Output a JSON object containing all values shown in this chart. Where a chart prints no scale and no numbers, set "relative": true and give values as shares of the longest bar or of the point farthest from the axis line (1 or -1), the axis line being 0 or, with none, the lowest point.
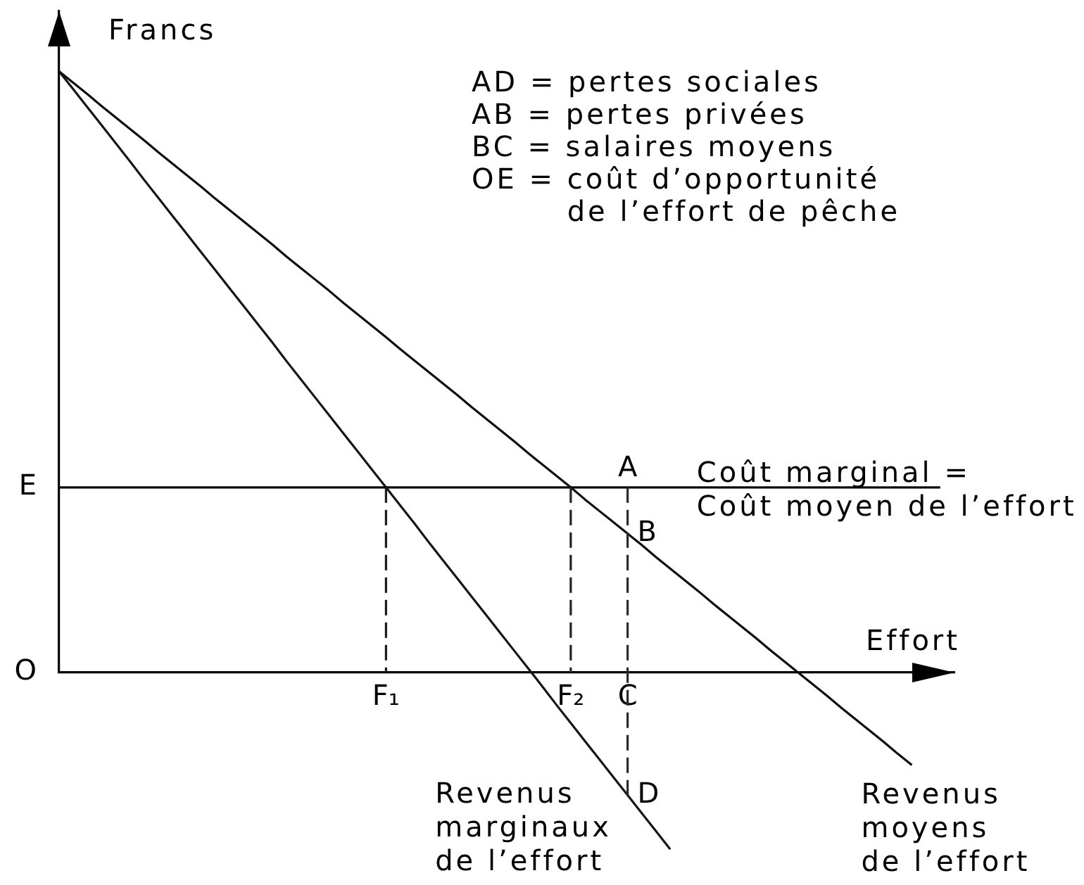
{
  "chart_data": {
    "type": "line",
    "relative": true,
    "xlabel": "Effort",
    "ylabel": "Francs",
    "categories": [
      null,
      null,
      null,
      null,
      null,
      null,
      null,
      null,
      null,
      null,
      null,
      null,
      null,
      null,
      null,
      null,
      null,
      null,
      null,
      null,
      null,
      null,
      null,
      "F₁",
      null,
      null,
      null,
      null,
      null,
      null,
      null,
      null,
      null,
      null,
      null,
      null,
      "F₂",
      null,
      null,
      null,
      "C",
      null,
      null,
      null,
      null,
      null,
      null,
      null,
      null,
      null,
      null,
      null,
      null,
      null,
      null,
      null,
      null,
      null,
      null,
      null,
      null,
      null,
      null,
      null
    ],
    "series": [
      {
        "name": "Revenus\nmarginaux\nde l’effort",
        "color": "#161616",
        "values": [
          1,
          0.97,
          0.94,
          0.91,
          0.88,
          0.85,
          0.819,
          0.789,
          0.759,
          0.729,
          0.699,
          0.669,
          0.639,
          0.609,
          0.579,
          0.549,
          0.518,
          0.488,
          0.458,
          0.428,
          0.398,
          0.368,
          0.338,
          0.308,
          0.278,
          0.248,
          0.217,
          0.187,
          0.157,
          0.127,
          0.097,
          0.067,
          0.037,
          0.007,
          -0.023,
          -0.054,
          -0.084,
          -0.114,
          -0.144,
          -0.174,
          -0.204,
          -0.234,
          -0.264,
          -0.294,
          null,
          null,
          null,
          null,
          null,
          null,
          null,
          null,
          null,
          null,
          null,
          null,
          null,
          null,
          null,
          null,
          null,
          null,
          null,
          null
        ]
      },
      {
        "name": "Revenus\nmoyens\nde l’effort",
        "color": "#0f0f0f",
        "values": [
          1,
          0.981,
          0.962,
          0.942,
          0.923,
          0.904,
          0.885,
          0.865,
          0.846,
          0.827,
          0.808,
          0.788,
          0.769,
          0.75,
          0.731,
          0.712,
          0.692,
          0.673,
          0.654,
          0.635,
          0.615,
          0.596,
          0.577,
          0.558,
          0.538,
          0.519,
          0.5,
          0.481,
          0.462,
          0.442,
          0.423,
          0.404,
          0.385,
          0.365,
          0.346,
          0.327,
          0.308,
          0.288,
          0.269,
          0.25,
          0.231,
          0.212,
          0.192,
          0.173,
          0.154,
          0.135,
          0.115,
          0.096,
          0.077,
          0.058,
          0.038,
          0.019,
          0,
          -0.019,
          -0.038,
          -0.058,
          -0.077,
          -0.096,
          -0.115,
          -0.135,
          -0.154,
          null,
          null,
          null
        ]
      },
      {
        "name": "Coût marginal =\nCoût moyen de l’effort",
        "color": "#080808",
        "values": [
          0.308,
          0.308,
          0.308,
          0.308,
          0.308,
          0.308,
          0.308,
          0.308,
          0.308,
          0.308,
          0.308,
          0.308,
          0.308,
          0.308,
          0.308,
          0.308,
          0.308,
          0.308,
          0.308,
          0.308,
          0.308,
          0.308,
          0.308,
          0.308,
          0.308,
          0.308,
          0.308,
          0.308,
          0.308,
          0.308,
          0.308,
          0.308,
          0.308,
          0.308,
          0.308,
          0.308,
          0.308,
          0.308,
          0.308,
          0.308,
          0.308,
          0.308,
          0.308,
          0.308,
          0.308,
          0.308,
          0.308,
          0.308,
          0.308,
          0.308,
          0.308,
          0.308,
          0.308,
          0.308,
          0.308,
          0.308,
          0.308,
          0.308,
          0.308,
          0.308,
          0.308,
          0.308,
          0.308,
          null
        ]
      },
      {
        "color": "#1d1d1d",
        "line_style": "dashed",
        "x": [
          "F₁",
          "F₁"
        ],
        "values": [
          0.308,
          0
        ]
      },
      {
        "color": "#242424",
        "line_style": "dashed",
        "x": [
          "F₂",
          "F₂"
        ],
        "values": [
          0.308,
          0
        ]
      },
      {
        "color": "#2b2b2b",
        "line_style": "dashed",
        "x": [
          "C",
          "C"
        ],
        "values": [
          0.308,
          -0.204
        ]
      }
    ],
    "annotations": [
      "AD = pertes sociales",
      "AB = pertes privées",
      "BC = salaires moyens",
      "OE = coût d’opportunité de l’effort de pêche",
      "E",
      "O",
      {
        "text": "A",
        "x": "C",
        "y": 0.308
      },
      {
        "text": "B",
        "x": "C",
        "y": 0.231
      },
      {
        "text": "D",
        "x": "C",
        "y": -0.204
      }
    ]
  }
}
